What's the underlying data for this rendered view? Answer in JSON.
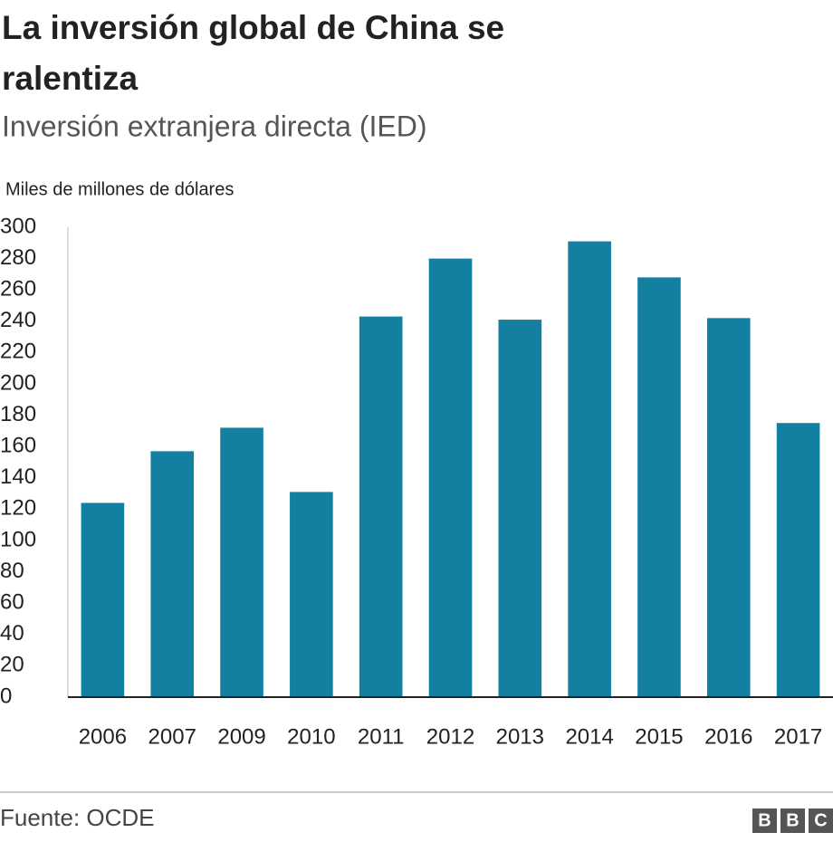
{
  "chart_data": {
    "type": "bar",
    "title": [
      "La inversión global de China se",
      "ralentiza"
    ],
    "subtitle": "Inversión extranjera directa (IED)",
    "y_label": "Miles de millones de dólares",
    "categories": [
      "2006",
      "2007",
      "2009",
      "2010",
      "2011",
      "2012",
      "2013",
      "2014",
      "2015",
      "2016",
      "2017"
    ],
    "values": [
      124,
      157,
      172,
      131,
      243,
      280,
      241,
      291,
      268,
      242,
      175
    ],
    "color": "#1380a1",
    "ylim": [
      0,
      300
    ],
    "yticks": [
      0,
      20,
      40,
      60,
      80,
      100,
      120,
      140,
      160,
      180,
      200,
      220,
      240,
      260,
      280,
      300
    ],
    "grid": false,
    "source": "Fuente: OCDE",
    "logo": [
      "B",
      "B",
      "C"
    ]
  }
}
